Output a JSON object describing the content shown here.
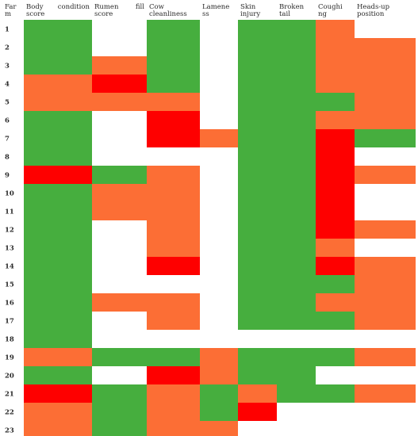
{
  "chart_data": {
    "type": "heatmap",
    "column_headers": [
      [
        "Far",
        "m"
      ],
      [
        "Body",
        "condition",
        "score"
      ],
      [
        "Rumen",
        "fill",
        "score"
      ],
      [
        "Cow",
        "cleanliness"
      ],
      [
        "Lamene",
        "ss"
      ],
      [
        "Skin",
        "injury"
      ],
      [
        "Broken",
        "tail"
      ],
      [
        "Coughi",
        "ng"
      ],
      [
        "Heads-up",
        "position"
      ]
    ],
    "rows": [
      "1",
      "2",
      "3",
      "4",
      "5",
      "6",
      "7",
      "8",
      "9",
      "10",
      "11",
      "12",
      "13",
      "14",
      "15",
      "16",
      "17",
      "18",
      "19",
      "20",
      "21",
      "22",
      "23"
    ],
    "categories": [
      "Body condition score",
      "Rumen fill score",
      "Cow cleanliness",
      "Lameness",
      "Skin injury",
      "Broken tail",
      "Coughing",
      "Heads-up position"
    ],
    "levels": {
      "0": "green",
      "1": "orange",
      "2": "red"
    },
    "colors": {
      "0": "#46ae3e",
      "1": "#fc6e35",
      "2": "#fe0000"
    },
    "segments": [
      [
        [
          0,
          0,
          2,
          0
        ],
        [
          2,
          2,
          3,
          0
        ],
        [
          4,
          5,
          4,
          0
        ],
        [
          6,
          6,
          3,
          1
        ],
        [
          8,
          8,
          0,
          0
        ]
      ],
      [
        [
          0,
          0,
          2,
          0
        ],
        [
          2,
          2,
          3,
          0
        ],
        [
          4,
          5,
          4,
          0
        ],
        [
          6,
          6,
          3,
          2
        ],
        [
          6,
          7,
          5,
          1
        ],
        [
          8,
          8,
          0,
          2
        ]
      ],
      [
        [
          0,
          0,
          2,
          0
        ],
        [
          1,
          1,
          5,
          1
        ],
        [
          2,
          2,
          3,
          0
        ],
        [
          4,
          5,
          4,
          0
        ],
        [
          6,
          7,
          5,
          1
        ],
        [
          8,
          8,
          0,
          0
        ]
      ],
      [
        [
          0,
          0,
          0,
          1
        ],
        [
          1,
          1,
          5,
          2
        ],
        [
          2,
          2,
          3,
          0
        ],
        [
          4,
          5,
          4,
          0
        ],
        [
          6,
          7,
          5,
          1
        ],
        [
          8,
          8,
          0,
          0
        ]
      ],
      [
        [
          0,
          0,
          0,
          1
        ],
        [
          1,
          1,
          5,
          1
        ],
        [
          2,
          2,
          3,
          1
        ],
        [
          4,
          5,
          4,
          0
        ],
        [
          6,
          6,
          3,
          0
        ],
        [
          7,
          7,
          1,
          1
        ],
        [
          8,
          8,
          0,
          0
        ]
      ],
      [
        [
          0,
          0,
          2,
          0
        ],
        [
          2,
          2,
          3,
          2
        ],
        [
          4,
          5,
          4,
          0
        ],
        [
          6,
          7,
          5,
          1
        ],
        [
          8,
          8,
          0,
          0
        ]
      ],
      [
        [
          0,
          0,
          2,
          0
        ],
        [
          2,
          2,
          3,
          2
        ],
        [
          3,
          3,
          1,
          1
        ],
        [
          4,
          5,
          4,
          0
        ],
        [
          6,
          6,
          3,
          2
        ],
        [
          7,
          7,
          1,
          0
        ],
        [
          8,
          8,
          0,
          2
        ]
      ],
      [
        [
          0,
          0,
          2,
          0
        ],
        [
          4,
          5,
          4,
          0
        ],
        [
          6,
          6,
          3,
          2
        ],
        [
          7,
          8,
          5,
          0
        ]
      ],
      [
        [
          0,
          0,
          0,
          2
        ],
        [
          1,
          1,
          5,
          0
        ],
        [
          2,
          2,
          3,
          1
        ],
        [
          4,
          5,
          4,
          0
        ],
        [
          6,
          6,
          3,
          2
        ],
        [
          7,
          7,
          1,
          1
        ],
        [
          8,
          8,
          0,
          0
        ]
      ],
      [
        [
          0,
          0,
          2,
          0
        ],
        [
          1,
          1,
          5,
          1
        ],
        [
          2,
          2,
          3,
          1
        ],
        [
          4,
          5,
          4,
          0
        ],
        [
          6,
          6,
          3,
          2
        ],
        [
          7,
          8,
          5,
          0
        ]
      ],
      [
        [
          0,
          0,
          2,
          0
        ],
        [
          1,
          1,
          5,
          1
        ],
        [
          2,
          2,
          3,
          1
        ],
        [
          4,
          5,
          4,
          0
        ],
        [
          6,
          6,
          3,
          2
        ],
        [
          7,
          8,
          5,
          0
        ]
      ],
      [
        [
          0,
          0,
          2,
          0
        ],
        [
          2,
          2,
          3,
          1
        ],
        [
          4,
          5,
          4,
          0
        ],
        [
          6,
          6,
          3,
          2
        ],
        [
          7,
          7,
          1,
          1
        ],
        [
          8,
          8,
          0,
          0
        ]
      ],
      [
        [
          0,
          0,
          2,
          0
        ],
        [
          2,
          2,
          3,
          1
        ],
        [
          4,
          5,
          4,
          0
        ],
        [
          6,
          6,
          3,
          1
        ],
        [
          7,
          8,
          5,
          0
        ]
      ],
      [
        [
          0,
          0,
          2,
          0
        ],
        [
          2,
          2,
          3,
          2
        ],
        [
          4,
          5,
          4,
          0
        ],
        [
          6,
          6,
          3,
          2
        ],
        [
          7,
          7,
          1,
          1
        ],
        [
          8,
          8,
          0,
          0
        ]
      ],
      [
        [
          0,
          0,
          2,
          0
        ],
        [
          4,
          5,
          4,
          0
        ],
        [
          6,
          6,
          3,
          0
        ],
        [
          7,
          7,
          1,
          1
        ],
        [
          8,
          8,
          0,
          0
        ]
      ],
      [
        [
          0,
          0,
          2,
          0
        ],
        [
          1,
          1,
          5,
          1
        ],
        [
          2,
          2,
          3,
          1
        ],
        [
          4,
          5,
          4,
          0
        ],
        [
          6,
          7,
          5,
          1
        ],
        [
          8,
          8,
          0,
          0
        ]
      ],
      [
        [
          0,
          0,
          2,
          0
        ],
        [
          2,
          2,
          3,
          1
        ],
        [
          4,
          5,
          4,
          0
        ],
        [
          6,
          6,
          3,
          0
        ],
        [
          7,
          7,
          1,
          1
        ],
        [
          8,
          8,
          0,
          0
        ]
      ],
      [
        [
          0,
          0,
          2,
          0
        ],
        [
          4,
          8,
          6,
          0
        ]
      ],
      [
        [
          0,
          0,
          0,
          1
        ],
        [
          1,
          1,
          5,
          0
        ],
        [
          2,
          2,
          3,
          0
        ],
        [
          3,
          3,
          1,
          1
        ],
        [
          4,
          5,
          4,
          0
        ],
        [
          6,
          6,
          3,
          0
        ],
        [
          7,
          7,
          1,
          1
        ],
        [
          8,
          8,
          0,
          0
        ]
      ],
      [
        [
          0,
          0,
          2,
          0
        ],
        [
          2,
          2,
          3,
          2
        ],
        [
          3,
          3,
          1,
          1
        ],
        [
          4,
          5,
          4,
          0
        ],
        [
          6,
          8,
          5,
          0
        ]
      ],
      [
        [
          0,
          0,
          0,
          2
        ],
        [
          1,
          1,
          5,
          0
        ],
        [
          2,
          2,
          3,
          1
        ],
        [
          3,
          3,
          1,
          0
        ],
        [
          4,
          4,
          1,
          1
        ],
        [
          5,
          6,
          5,
          0
        ],
        [
          7,
          7,
          1,
          1
        ],
        [
          8,
          8,
          0,
          0
        ]
      ],
      [
        [
          0,
          0,
          0,
          1
        ],
        [
          1,
          1,
          5,
          0
        ],
        [
          2,
          2,
          3,
          1
        ],
        [
          3,
          3,
          1,
          0
        ],
        [
          4,
          4,
          1,
          2
        ],
        [
          5,
          8,
          6,
          0
        ]
      ],
      [
        [
          0,
          0,
          0,
          1
        ],
        [
          1,
          1,
          5,
          0
        ],
        [
          2,
          3,
          4,
          1
        ],
        [
          4,
          8,
          6,
          0
        ]
      ]
    ]
  }
}
